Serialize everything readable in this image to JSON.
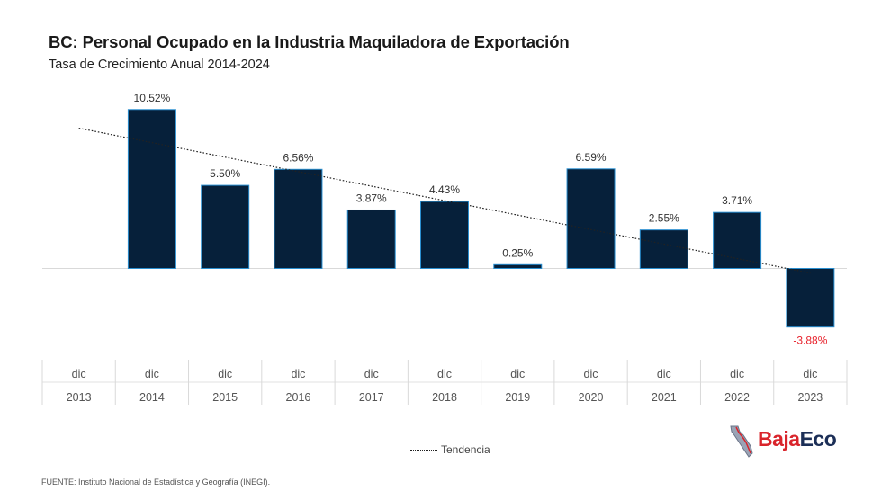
{
  "title": "BC: Personal Ocupado en la Industria Maquiladora de Exportación",
  "subtitle": "Tasa de Crecimiento Anual 2014-2024",
  "legend_label": "Tendencia",
  "source": "FUENTE: Instituto Nacional de Estadística y Geografía (INEGI).",
  "logo": {
    "part1": "Baja",
    "part2": "Eco"
  },
  "colors": {
    "bar": "#06203a",
    "bar_stroke": "#2a8fd0",
    "negative_label": "#e8212b",
    "label": "#333333",
    "trend": "#222222",
    "grid": "#d9d9d9"
  },
  "chart_data": {
    "type": "bar",
    "categories": [
      {
        "month": "dic",
        "year": "2013"
      },
      {
        "month": "dic",
        "year": "2014"
      },
      {
        "month": "dic",
        "year": "2015"
      },
      {
        "month": "dic",
        "year": "2016"
      },
      {
        "month": "dic",
        "year": "2017"
      },
      {
        "month": "dic",
        "year": "2018"
      },
      {
        "month": "dic",
        "year": "2019"
      },
      {
        "month": "dic",
        "year": "2020"
      },
      {
        "month": "dic",
        "year": "2021"
      },
      {
        "month": "dic",
        "year": "2022"
      },
      {
        "month": "dic",
        "year": "2023"
      }
    ],
    "values": [
      null,
      10.52,
      5.5,
      6.56,
      3.87,
      4.43,
      0.25,
      6.59,
      2.55,
      3.71,
      -3.88
    ],
    "data_labels": [
      "",
      "10.52%",
      "5.50%",
      "6.56%",
      "3.87%",
      "4.43%",
      "0.25%",
      "6.59%",
      "2.55%",
      "3.71%",
      "-3.88%"
    ],
    "trendline": {
      "type": "linear",
      "style": "dotted"
    },
    "legend_position": "bottom"
  }
}
